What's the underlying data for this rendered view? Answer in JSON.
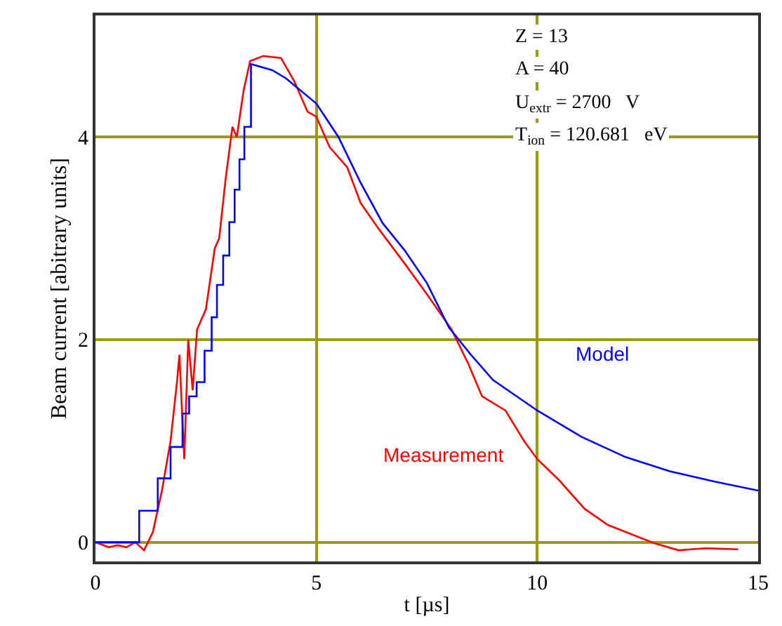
{
  "chart_data": {
    "type": "line",
    "xlabel": "t [µs]",
    "ylabel": "Beam current [abitrary units]",
    "xlim": [
      0,
      15
    ],
    "ylim": [
      -0.19,
      5.2
    ],
    "xticks": [
      0,
      5,
      10,
      15
    ],
    "yticks": [
      0,
      2,
      4
    ],
    "grid": true,
    "legend": false,
    "annotations": [
      "Z = 13",
      "A = 40",
      "U$_{extr}$ = 2700   V",
      "T$_{ion}$ = 120.681   eV"
    ],
    "series": [
      {
        "name": "Measurement",
        "color": "#ff0000",
        "x": [
          0,
          0.3,
          0.5,
          0.7,
          0.9,
          1.1,
          1.3,
          1.5,
          1.7,
          1.85,
          1.9,
          2.01,
          2.1,
          2.2,
          2.3,
          2.5,
          2.7,
          2.8,
          2.95,
          3.1,
          3.2,
          3.35,
          3.5,
          3.8,
          4.2,
          4.5,
          4.8,
          5,
          5.3,
          5.7,
          6,
          6.4,
          7,
          7.5,
          8.06,
          8.44,
          8.75,
          9.28,
          9.7,
          10,
          10.5,
          11.07,
          11.6,
          12.12,
          12.65,
          13.2,
          13.8,
          14.55
        ],
        "values": [
          0,
          -0.05,
          -0.03,
          -0.05,
          0,
          -0.08,
          0.1,
          0.5,
          1.0,
          1.6,
          1.85,
          0.82,
          2.0,
          1.5,
          2.1,
          2.3,
          2.9,
          3.0,
          3.6,
          4.1,
          4.0,
          4.45,
          4.75,
          4.8,
          4.78,
          4.55,
          4.25,
          4.2,
          3.9,
          3.7,
          3.35,
          3.1,
          2.75,
          2.45,
          2.1,
          1.76,
          1.44,
          1.3,
          1.0,
          0.82,
          0.61,
          0.33,
          0.17,
          0.08,
          -0.01,
          -0.08,
          -0.06,
          -0.07
        ]
      },
      {
        "name": "Model",
        "color": "#0000ff",
        "x": [
          0,
          0.99,
          0.99,
          1.41,
          1.41,
          1.7,
          1.7,
          1.97,
          1.97,
          2.12,
          2.12,
          2.29,
          2.29,
          2.47,
          2.47,
          2.63,
          2.63,
          2.75,
          2.75,
          2.89,
          2.89,
          3.03,
          3.03,
          3.15,
          3.15,
          3.26,
          3.26,
          3.37,
          3.37,
          3.52,
          3.52,
          4,
          4.31,
          5,
          5.5,
          6,
          6.5,
          7,
          7.5,
          8,
          8.5,
          9,
          10,
          11,
          12,
          13,
          14,
          15
        ],
        "values": [
          0,
          0,
          0.31,
          0.31,
          0.63,
          0.63,
          0.94,
          0.94,
          1.27,
          1.27,
          1.44,
          1.44,
          1.58,
          1.58,
          1.89,
          1.89,
          2.22,
          2.22,
          2.54,
          2.54,
          2.83,
          2.83,
          3.16,
          3.16,
          3.48,
          3.48,
          3.78,
          3.78,
          4.1,
          4.1,
          4.72,
          4.66,
          4.58,
          4.33,
          4.0,
          3.55,
          3.15,
          2.88,
          2.56,
          2.12,
          1.85,
          1.6,
          1.3,
          1.04,
          0.84,
          0.7,
          0.6,
          0.51
        ]
      }
    ]
  }
}
